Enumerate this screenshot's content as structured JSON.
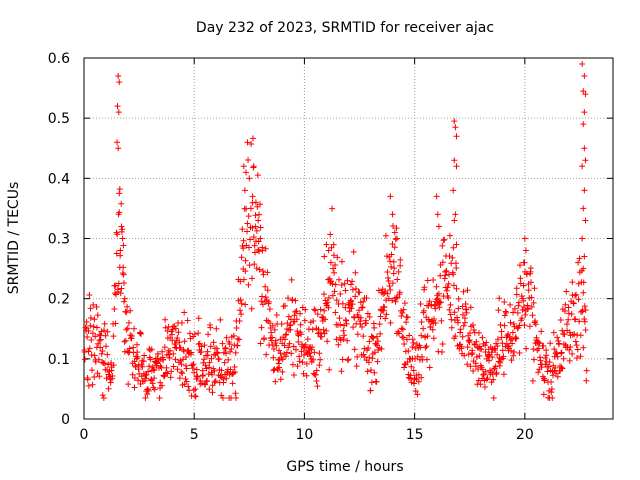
{
  "chart_data": {
    "type": "scatter",
    "title": "Day 232 of 2023, SRMTID for receiver ajac",
    "xlabel": "GPS time / hours",
    "ylabel": "SRMTID / TECUs",
    "xlim": [
      0,
      24
    ],
    "ylim": [
      0,
      0.6
    ],
    "x_ticks": [
      0,
      5,
      10,
      15,
      20
    ],
    "x_tick_labels": [
      "0",
      "5",
      "10",
      "15",
      "20"
    ],
    "y_ticks": [
      0,
      0.1,
      0.2,
      0.3,
      0.4,
      0.5,
      0.6
    ],
    "y_tick_labels": [
      "0",
      "0.1",
      "0.2",
      "0.3",
      "0.4",
      "0.5",
      "0.6"
    ],
    "grid": true,
    "marker": "+",
    "series": [
      {
        "name": "SRMTID",
        "color": "#ff0000",
        "profile_x": [
          0,
          0.3,
          0.6,
          0.9,
          1.1,
          1.3,
          1.45,
          1.6,
          1.75,
          1.9,
          2.1,
          2.4,
          2.7,
          3.0,
          3.3,
          3.6,
          3.9,
          4.2,
          4.5,
          4.8,
          5.1,
          5.4,
          5.7,
          6.0,
          6.3,
          6.6,
          6.9,
          7.1,
          7.3,
          7.5,
          7.7,
          7.9,
          8.1,
          8.3,
          8.5,
          8.8,
          9.1,
          9.4,
          9.7,
          10.0,
          10.3,
          10.6,
          10.9,
          11.1,
          11.3,
          11.6,
          11.9,
          12.1,
          12.4,
          12.7,
          13.0,
          13.3,
          13.6,
          13.9,
          14.1,
          14.3,
          14.6,
          14.9,
          15.1,
          15.3,
          15.6,
          15.9,
          16.1,
          16.4,
          16.7,
          16.9,
          17.1,
          17.4,
          17.7,
          18.0,
          18.3,
          18.6,
          18.9,
          19.2,
          19.5,
          19.8,
          20.0,
          20.2,
          20.5,
          20.8,
          21.1,
          21.4,
          21.7,
          22.0,
          22.3,
          22.5,
          22.7,
          22.8
        ],
        "profile_y": [
          0.12,
          0.13,
          0.14,
          0.1,
          0.09,
          0.12,
          0.2,
          0.29,
          0.24,
          0.15,
          0.12,
          0.1,
          0.07,
          0.07,
          0.08,
          0.1,
          0.13,
          0.12,
          0.1,
          0.11,
          0.09,
          0.1,
          0.09,
          0.09,
          0.1,
          0.08,
          0.1,
          0.2,
          0.32,
          0.35,
          0.33,
          0.3,
          0.22,
          0.18,
          0.13,
          0.12,
          0.13,
          0.15,
          0.14,
          0.12,
          0.11,
          0.13,
          0.16,
          0.2,
          0.24,
          0.17,
          0.16,
          0.18,
          0.19,
          0.15,
          0.1,
          0.12,
          0.2,
          0.24,
          0.27,
          0.22,
          0.13,
          0.09,
          0.07,
          0.13,
          0.15,
          0.17,
          0.2,
          0.26,
          0.23,
          0.2,
          0.16,
          0.14,
          0.12,
          0.1,
          0.09,
          0.1,
          0.12,
          0.14,
          0.15,
          0.18,
          0.22,
          0.2,
          0.14,
          0.09,
          0.07,
          0.1,
          0.15,
          0.14,
          0.17,
          0.2,
          0.15,
          0.09
        ],
        "outliers": [
          [
            1.55,
            0.57
          ],
          [
            1.6,
            0.56
          ],
          [
            1.52,
            0.52
          ],
          [
            1.58,
            0.51
          ],
          [
            1.5,
            0.46
          ],
          [
            1.55,
            0.45
          ],
          [
            1.6,
            0.375
          ],
          [
            1.7,
            0.32
          ],
          [
            1.75,
            0.3
          ],
          [
            1.65,
            0.28
          ],
          [
            1.8,
            0.24
          ],
          [
            1.85,
            0.2
          ],
          [
            7.25,
            0.42
          ],
          [
            7.35,
            0.41
          ],
          [
            7.5,
            0.4
          ],
          [
            7.7,
            0.42
          ],
          [
            7.65,
            0.37
          ],
          [
            7.8,
            0.36
          ],
          [
            7.3,
            0.38
          ],
          [
            7.9,
            0.33
          ],
          [
            8.0,
            0.3
          ],
          [
            8.1,
            0.28
          ],
          [
            11.0,
            0.29
          ],
          [
            11.1,
            0.28
          ],
          [
            10.9,
            0.27
          ],
          [
            11.2,
            0.26
          ],
          [
            13.9,
            0.37
          ],
          [
            14.0,
            0.34
          ],
          [
            14.2,
            0.3
          ],
          [
            14.1,
            0.31
          ],
          [
            16.0,
            0.37
          ],
          [
            16.05,
            0.34
          ],
          [
            16.1,
            0.32
          ],
          [
            16.8,
            0.495
          ],
          [
            16.85,
            0.485
          ],
          [
            16.9,
            0.47
          ],
          [
            16.8,
            0.43
          ],
          [
            16.9,
            0.42
          ],
          [
            16.75,
            0.38
          ],
          [
            16.85,
            0.34
          ],
          [
            16.8,
            0.33
          ],
          [
            16.9,
            0.29
          ],
          [
            20.0,
            0.3
          ],
          [
            20.05,
            0.28
          ],
          [
            19.95,
            0.26
          ],
          [
            22.6,
            0.59
          ],
          [
            22.7,
            0.57
          ],
          [
            22.65,
            0.545
          ],
          [
            22.75,
            0.54
          ],
          [
            22.7,
            0.51
          ],
          [
            22.65,
            0.49
          ],
          [
            22.7,
            0.45
          ],
          [
            22.75,
            0.43
          ],
          [
            22.6,
            0.42
          ],
          [
            22.7,
            0.38
          ],
          [
            22.65,
            0.35
          ],
          [
            22.75,
            0.33
          ],
          [
            22.6,
            0.3
          ],
          [
            22.7,
            0.27
          ],
          [
            22.65,
            0.25
          ]
        ]
      }
    ]
  }
}
